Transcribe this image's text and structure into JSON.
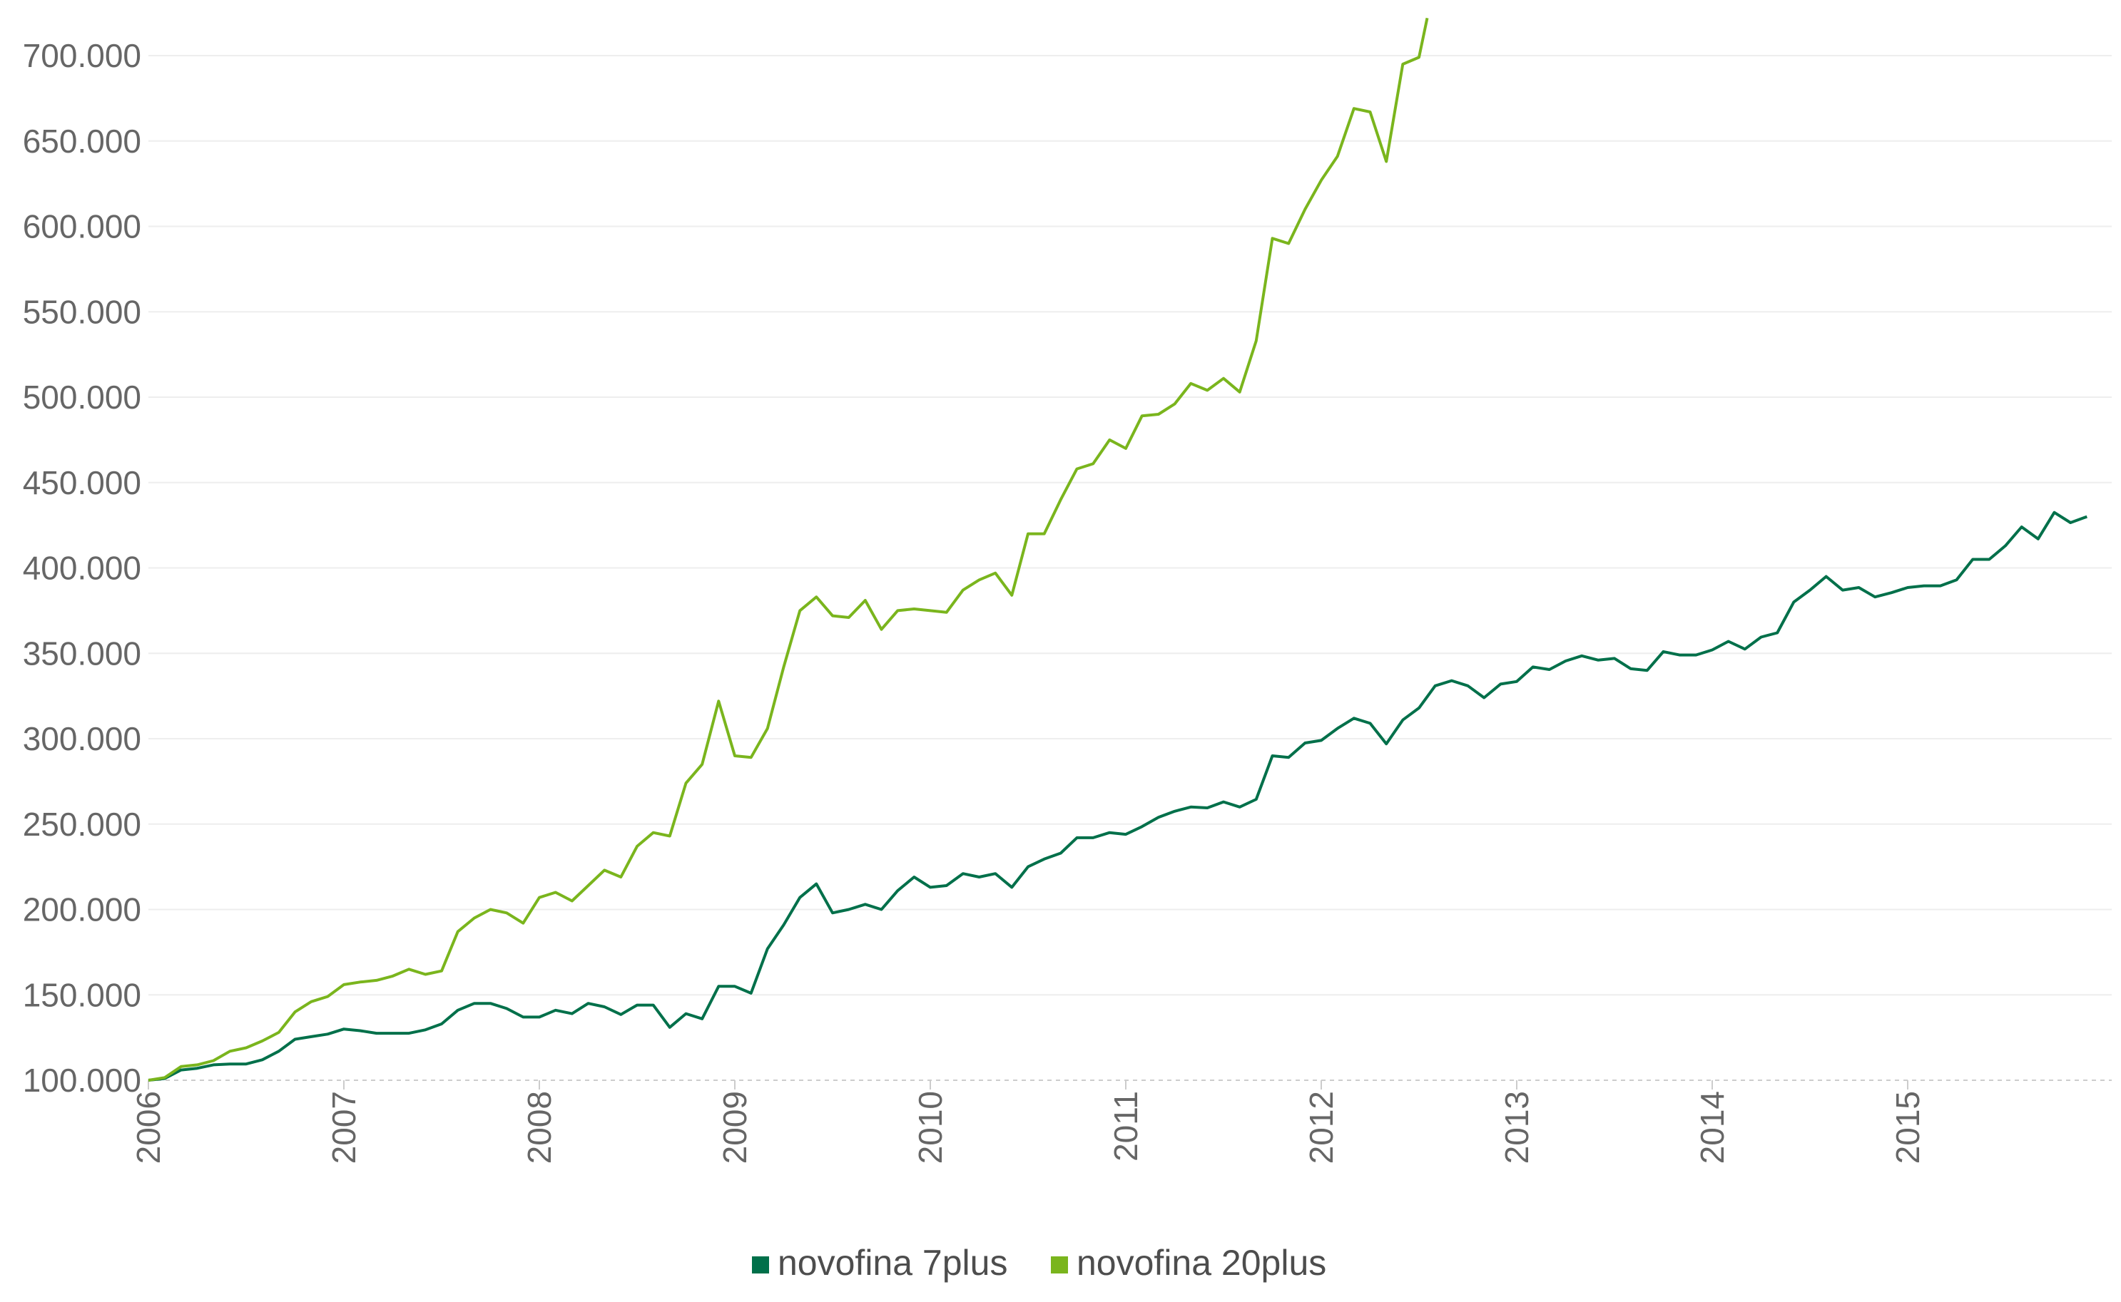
{
  "chart_data": {
    "type": "line",
    "title": "",
    "xlabel": "",
    "ylabel": "",
    "x_range": [
      2006.0,
      2016.0
    ],
    "ylim": [
      100000,
      720000
    ],
    "y_ticks": [
      100000,
      150000,
      200000,
      250000,
      300000,
      350000,
      400000,
      450000,
      500000,
      550000,
      600000,
      650000,
      700000
    ],
    "y_tick_labels": [
      "100.000",
      "150.000",
      "200.000",
      "250.000",
      "300.000",
      "350.000",
      "400.000",
      "450.000",
      "500.000",
      "550.000",
      "600.000",
      "650.000",
      "700.000"
    ],
    "x_ticks": [
      2006,
      2007,
      2008,
      2009,
      2010,
      2011,
      2012,
      2013,
      2014,
      2015
    ],
    "x_tick_labels": [
      "2006",
      "2007",
      "2008",
      "2009",
      "2010",
      "2011",
      "2012",
      "2013",
      "2014",
      "2015"
    ],
    "grid": true,
    "legend_position": "bottom-center",
    "series": [
      {
        "name": "novofina 7plus",
        "color": "#00704a",
        "x": [
          2006.0,
          2006.083,
          2006.167,
          2006.25,
          2006.333,
          2006.417,
          2006.5,
          2006.583,
          2006.667,
          2006.75,
          2006.833,
          2006.917,
          2007.0,
          2007.083,
          2007.167,
          2007.25,
          2007.333,
          2007.417,
          2007.5,
          2007.583,
          2007.667,
          2007.75,
          2007.833,
          2007.917,
          2008.0,
          2008.083,
          2008.167,
          2008.25,
          2008.333,
          2008.417,
          2008.5,
          2008.583,
          2008.667,
          2008.75,
          2008.833,
          2008.917,
          2009.0,
          2009.083,
          2009.167,
          2009.25,
          2009.333,
          2009.417,
          2009.5,
          2009.583,
          2009.667,
          2009.75,
          2009.833,
          2009.917,
          2010.0,
          2010.083,
          2010.167,
          2010.25,
          2010.333,
          2010.417,
          2010.5,
          2010.583,
          2010.667,
          2010.75,
          2010.833,
          2010.917,
          2011.0,
          2011.083,
          2011.167,
          2011.25,
          2011.333,
          2011.417,
          2011.5,
          2011.583,
          2011.667,
          2011.75,
          2011.833,
          2011.917,
          2012.0,
          2012.083,
          2012.167,
          2012.25,
          2012.333,
          2012.417,
          2012.5,
          2012.583,
          2012.667,
          2012.75,
          2012.833,
          2012.917,
          2013.0,
          2013.083,
          2013.167,
          2013.25,
          2013.333,
          2013.417,
          2013.5,
          2013.583,
          2013.667,
          2013.75,
          2013.833,
          2013.917,
          2014.0,
          2014.083,
          2014.167,
          2014.25,
          2014.333,
          2014.417,
          2014.5,
          2014.583,
          2014.667,
          2014.75,
          2014.833,
          2014.917,
          2015.0,
          2015.083,
          2015.167,
          2015.25,
          2015.333,
          2015.417,
          2015.5,
          2015.583,
          2015.667,
          2015.75,
          2015.833,
          2015.917
        ],
        "values": [
          100000,
          101000,
          106000,
          107000,
          109000,
          109500,
          109500,
          112000,
          117000,
          124000,
          125500,
          127000,
          130000,
          129000,
          127500,
          127500,
          127500,
          129500,
          133000,
          141000,
          145000,
          145000,
          142000,
          137000,
          137000,
          141000,
          139000,
          145000,
          143000,
          138500,
          144000,
          144000,
          131000,
          139000,
          136000,
          155000,
          155000,
          151000,
          177000,
          191000,
          207000,
          215000,
          198000,
          200000,
          203000,
          200000,
          211000,
          219000,
          213000,
          214000,
          221000,
          219000,
          221000,
          213000,
          225000,
          229500,
          233000,
          242000,
          242000,
          245000,
          244000,
          248500,
          254000,
          257500,
          260000,
          259500,
          263000,
          260000,
          264500,
          290000,
          289000,
          297500,
          299000,
          306000,
          312000,
          309000,
          297000,
          311000,
          318000,
          331000,
          334000,
          331000,
          324000,
          332000,
          333500,
          342000,
          340500,
          345500,
          348500,
          346000,
          347000,
          341000,
          340000,
          351000,
          349000,
          349000,
          352000,
          357000,
          352500,
          359500,
          362000,
          380000,
          387000,
          395000,
          387000,
          388500,
          383000,
          385500,
          388500,
          389500,
          389500,
          393000,
          405000,
          405000,
          413000,
          424000,
          417000,
          432500,
          426500,
          430000
        ]
      },
      {
        "name": "novofina 20plus",
        "color": "#7ab51d",
        "x": [
          2006.0,
          2006.083,
          2006.167,
          2006.25,
          2006.333,
          2006.417,
          2006.5,
          2006.583,
          2006.667,
          2006.75,
          2006.833,
          2006.917,
          2007.0,
          2007.083,
          2007.167,
          2007.25,
          2007.333,
          2007.417,
          2007.5,
          2007.583,
          2007.667,
          2007.75,
          2007.833,
          2007.917,
          2008.0,
          2008.083,
          2008.167,
          2008.25,
          2008.333,
          2008.417,
          2008.5,
          2008.583,
          2008.667,
          2008.75,
          2008.833,
          2008.917,
          2009.0,
          2009.083,
          2009.167,
          2009.25,
          2009.333,
          2009.417,
          2009.5,
          2009.583,
          2009.667,
          2009.75,
          2009.833,
          2009.917,
          2010.0,
          2010.083,
          2010.167,
          2010.25,
          2010.333,
          2010.417,
          2010.5,
          2010.583,
          2010.667,
          2010.75,
          2010.833,
          2010.917,
          2011.0,
          2011.083,
          2011.167,
          2011.25,
          2011.333,
          2011.417,
          2011.5,
          2011.583,
          2011.667,
          2011.75,
          2011.833,
          2011.917,
          2012.0,
          2012.083,
          2012.167,
          2012.25,
          2012.333,
          2012.417,
          2012.5,
          2012.542
        ],
        "values": [
          100000,
          101500,
          108000,
          109000,
          111500,
          117000,
          119000,
          123000,
          128000,
          140000,
          146000,
          149000,
          156000,
          157500,
          158500,
          161000,
          165000,
          162000,
          164000,
          187000,
          195000,
          200000,
          198000,
          192000,
          207000,
          210000,
          205000,
          214000,
          223000,
          219000,
          237000,
          245000,
          243000,
          274000,
          285000,
          322000,
          290000,
          289000,
          306000,
          342000,
          375000,
          383000,
          372000,
          371000,
          381000,
          364000,
          375000,
          376000,
          375000,
          374000,
          387000,
          393000,
          397000,
          384000,
          420000,
          420000,
          440000,
          458000,
          461000,
          475000,
          470000,
          489000,
          490000,
          496000,
          508000,
          504000,
          511000,
          503000,
          533000,
          593000,
          590000,
          610000,
          627000,
          641000,
          669000,
          667000,
          638000,
          695000,
          699000,
          722000
        ]
      }
    ]
  }
}
